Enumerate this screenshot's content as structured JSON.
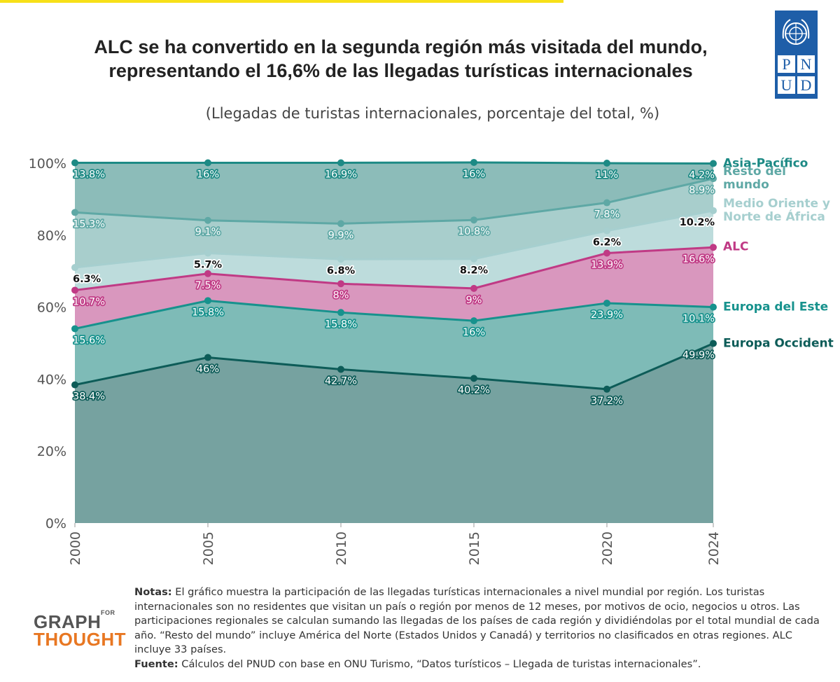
{
  "header": {
    "title_lines": [
      "ALC se ha convertido en la segunda región más visitada del mundo,",
      "representando el 16,6% de las llegadas turísticas internacionales"
    ],
    "logo_letters": [
      "P",
      "N",
      "U",
      "D"
    ]
  },
  "chart_data": {
    "type": "stacked_area",
    "subtitle": "(Llegadas de turistas internacionales, porcentaje del total, %)",
    "x": [
      2000,
      2005,
      2010,
      2015,
      2020,
      2024
    ],
    "xlim": [
      2000,
      2024
    ],
    "xticks": [
      2000,
      2005,
      2010,
      2015,
      2020,
      2024
    ],
    "ylim": [
      0,
      100
    ],
    "yticks": [
      {
        "value": 0,
        "label": "0%"
      },
      {
        "value": 20,
        "label": "20%"
      },
      {
        "value": 40,
        "label": "40%"
      },
      {
        "value": 60,
        "label": "60%"
      },
      {
        "value": 80,
        "label": "80%"
      },
      {
        "value": 100,
        "label": "100%"
      }
    ],
    "series": [
      {
        "name": "Europa Occident",
        "color": "#0d5c58",
        "fill": "#76a2a0",
        "label_color": "#0d5c58",
        "values": [
          38.4,
          46,
          42.7,
          40.2,
          37.2,
          49.9
        ],
        "value_labels": [
          "38.4%",
          "46%",
          "42.7%",
          "40.2%",
          "37.2%",
          "49.9%"
        ]
      },
      {
        "name": "Europa del Este",
        "color": "#17928d",
        "fill": "#7ebbb7",
        "label_color": "#17928d",
        "values": [
          15.6,
          15.8,
          15.8,
          16,
          23.9,
          10.1
        ],
        "value_labels": [
          "15.6%",
          "15.8%",
          "15.8%",
          "16%",
          "23.9%",
          "10.1%"
        ]
      },
      {
        "name": "ALC",
        "color": "#c03a85",
        "fill": "#d997be",
        "label_color": "#c03a85",
        "values": [
          10.7,
          7.5,
          8,
          9,
          13.9,
          16.6
        ],
        "value_labels": [
          "10.7%",
          "7.5%",
          "8%",
          "9%",
          "13.9%",
          "16.6%"
        ]
      },
      {
        "name": "Medio Oriente y Norte de África",
        "color": "#a6cfcf",
        "fill": "#bddcdc",
        "label_color": "#ffffff",
        "values": [
          6.3,
          5.7,
          6.8,
          8.2,
          6.2,
          10.2
        ],
        "value_labels": [
          "6.3%",
          "5.7%",
          "6.8%",
          "8.2%",
          "6.2%",
          "10.2%"
        ]
      },
      {
        "name": "Resto del mundo",
        "color": "#5ea8a5",
        "fill": "#a8cecc",
        "label_color": "#5ea8a5",
        "values": [
          15.3,
          9.1,
          9.9,
          10.8,
          7.8,
          8.9
        ],
        "value_labels": [
          "15.3%",
          "9.1%",
          "9.9%",
          "10.8%",
          "7.8%",
          "8.9%"
        ]
      },
      {
        "name": "Asia-Pacífico",
        "color": "#1d8a85",
        "fill": "#8cbcb9",
        "label_color": "#1d8a85",
        "values": [
          13.8,
          16,
          16.9,
          16,
          11,
          4.2
        ],
        "value_labels": [
          "13.8%",
          "16%",
          "16.9%",
          "16%",
          "11%",
          "4.2%"
        ]
      }
    ]
  },
  "footer": {
    "brand": [
      "GRAPH",
      "FOR",
      "THOUGHT"
    ],
    "notes_label": "Notas:",
    "notes": "El gráfico muestra la participación de las llegadas turísticas internacionales a nivel mundial por región. Los turistas internacionales son no residentes que visitan un país o región por menos de 12 meses, por motivos de ocio, negocios u otros. Las participaciones regionales se calculan sumando las llegadas de los países de cada región y dividiéndolas por el total mundial de cada año. “Resto del mundo” incluye América del Norte (Estados Unidos y Canadá) y territorios no clasificados en otras regiones. ALC incluye 33 países.",
    "source_label": "Fuente:",
    "source": "Cálculos del PNUD con base en ONU Turismo, “Datos turísticos – Llegada de turistas internacionales”."
  }
}
